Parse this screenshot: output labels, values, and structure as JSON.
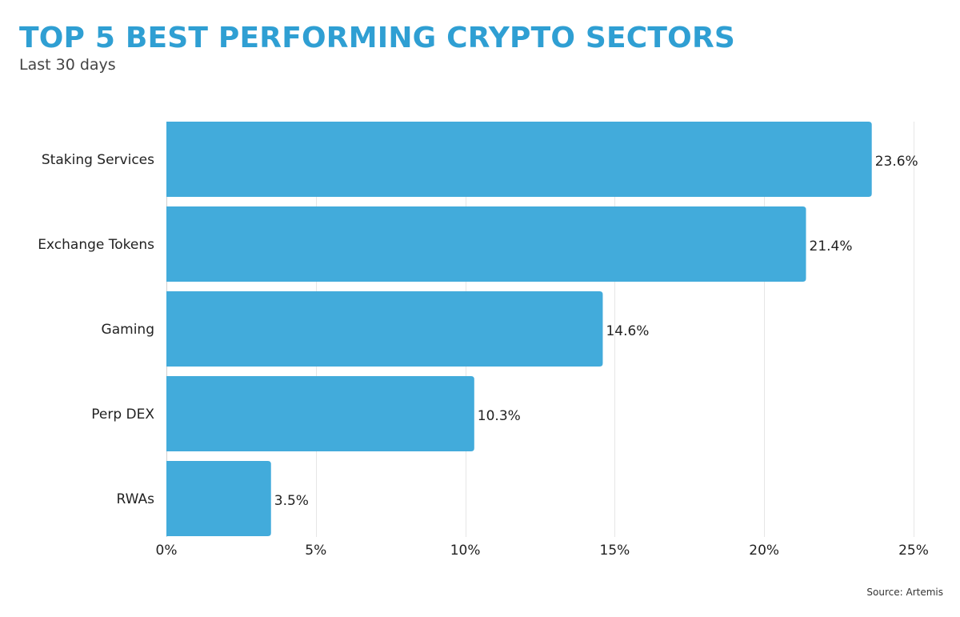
{
  "title": "TOP 5 BEST PERFORMING CRYPTO SECTORS",
  "subtitle": "Last 30 days",
  "source": {
    "label": "Source:",
    "value": "Artemis"
  },
  "colors": {
    "title": "#2f9fd3",
    "bar": "#42abdb",
    "grid": "#e6e6e6",
    "text": "#222222"
  },
  "chart_data": {
    "type": "bar",
    "orientation": "horizontal",
    "categories": [
      "Staking Services",
      "Exchange Tokens",
      "Gaming",
      "Perp DEX",
      "RWAs"
    ],
    "values": [
      23.6,
      21.4,
      14.6,
      10.3,
      3.5
    ],
    "value_labels": [
      "23.6%",
      "21.4%",
      "14.6%",
      "10.3%",
      "3.5%"
    ],
    "xlim": [
      0,
      25
    ],
    "xticks": [
      0,
      5,
      10,
      15,
      20,
      25
    ],
    "xtick_labels": [
      "0%",
      "5%",
      "10%",
      "15%",
      "20%",
      "25%"
    ],
    "grid": true
  }
}
